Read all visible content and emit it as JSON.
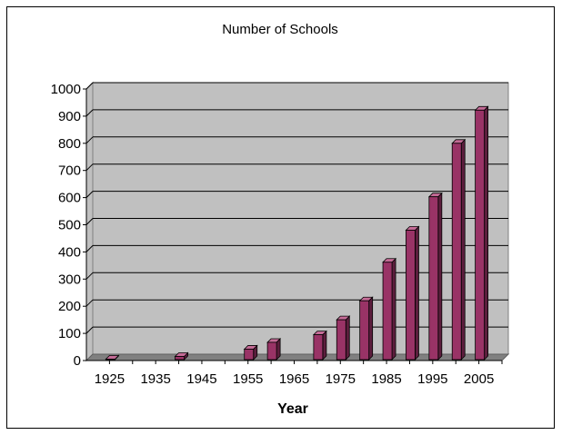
{
  "chart_data": {
    "type": "bar",
    "title": "Number of Schools",
    "xlabel": "Year",
    "ylabel": "",
    "ylim": [
      0,
      1000
    ],
    "yticks": [
      0,
      100,
      200,
      300,
      400,
      500,
      600,
      700,
      800,
      900,
      1000
    ],
    "xticks": [
      1925,
      1935,
      1945,
      1955,
      1965,
      1975,
      1985,
      1995,
      2005
    ],
    "x": [
      1925,
      1940,
      1955,
      1960,
      1970,
      1975,
      1980,
      1985,
      1990,
      1995,
      2000,
      2005
    ],
    "values": [
      5,
      15,
      42,
      67,
      95,
      150,
      220,
      362,
      480,
      603,
      800,
      922
    ],
    "grid": true,
    "legend": "none",
    "colors": {
      "bar_front": "#993366",
      "bar_side": "#5c1e3d",
      "bar_top": "#c46b96",
      "plot_wall": "#c0c0c0",
      "floor": "#808080"
    }
  }
}
